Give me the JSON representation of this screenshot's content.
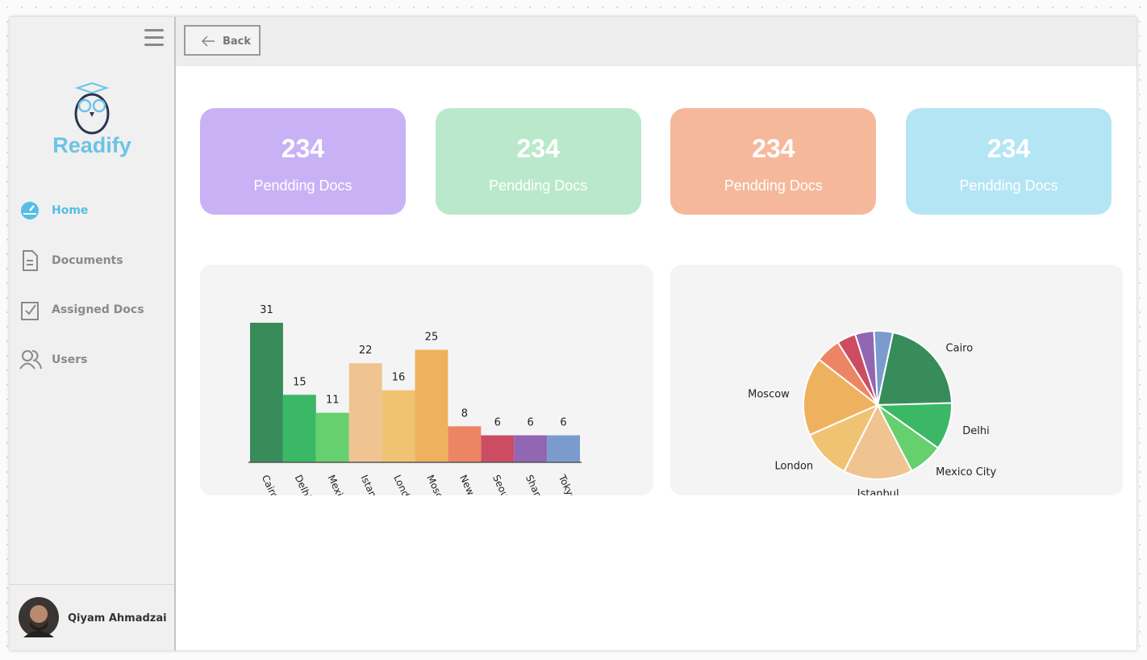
{
  "sidebar": {
    "brand": "Readify",
    "nav": [
      {
        "label": "Home",
        "active": true
      },
      {
        "label": "Documents",
        "active": false
      },
      {
        "label": "Assigned Docs",
        "active": false
      },
      {
        "label": "Users",
        "active": false
      }
    ],
    "user": "Qiyam Ahmadzai"
  },
  "topbar": {
    "back": "Back"
  },
  "cards": [
    {
      "value": 234,
      "label": "Pendding Docs",
      "color": "#c9b1f6"
    },
    {
      "value": 234,
      "label": "Pendding Docs",
      "color": "#b9e9ca"
    },
    {
      "value": 234,
      "label": "Pendding Docs",
      "color": "#f6b89b"
    },
    {
      "value": 234,
      "label": "Pendding Docs",
      "color": "#b4e5f5"
    }
  ],
  "bar_chart": {
    "type": "bar",
    "categories": [
      "Cairo",
      "Delhi",
      "Mexico City",
      "Istanbul",
      "London",
      "Moscow",
      "New York",
      "Seoul",
      "Shanghai",
      "Tokyo"
    ],
    "values": [
      31,
      15,
      11,
      22,
      16,
      25,
      8,
      6,
      6,
      6
    ],
    "colors": [
      "#378c5a",
      "#3ab866",
      "#66cf6e",
      "#efc490",
      "#f0c372",
      "#eeb25f",
      "#ec8564",
      "#cc4d62",
      "#9366b3",
      "#7b9bcf"
    ]
  },
  "pie_chart": {
    "type": "pie",
    "labels": [
      "Cairo",
      "Delhi",
      "Mexico City",
      "Istanbul",
      "London",
      "Moscow",
      null,
      null,
      null,
      null
    ],
    "values": [
      31,
      15,
      11,
      22,
      16,
      25,
      8,
      6,
      6,
      6
    ],
    "colors": [
      "#378c5a",
      "#3ab866",
      "#66cf6e",
      "#efc490",
      "#f0c372",
      "#eeb25f",
      "#ec8564",
      "#cc4d62",
      "#9366b3",
      "#7b9bcf"
    ]
  }
}
